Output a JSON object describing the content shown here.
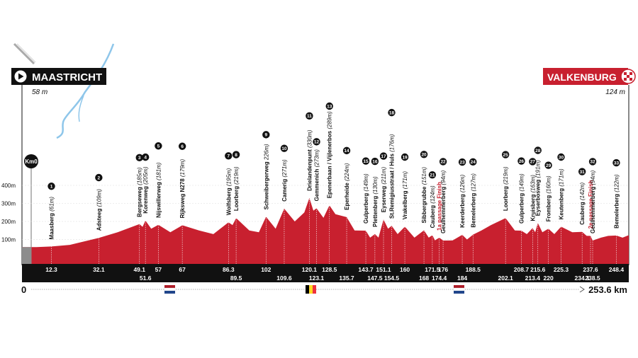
{
  "start": {
    "name": "MAASTRICHT",
    "elevation": "58 m",
    "km0": "Km0"
  },
  "finish": {
    "name": "VALKENBURG",
    "elevation": "124 m"
  },
  "distance": {
    "start": "0",
    "end": "253.6 km"
  },
  "colors": {
    "profile": "#c8202f",
    "start_tag": "#111111",
    "finish_tag": "#c8202f",
    "bar": "#111111",
    "river": "#8ec6ea"
  },
  "chart_data": {
    "type": "area",
    "ylabel": "",
    "y_ticks": [
      "100m",
      "200m",
      "300m",
      "400m"
    ],
    "ylim": [
      0,
      520
    ],
    "xlim": [
      0,
      253.6
    ],
    "climbs": [
      {
        "n": 1,
        "name": "Maasberg",
        "elev": "(61m)",
        "km": 12.3
      },
      {
        "n": 2,
        "name": "Adsteeg",
        "elev": "(109m)",
        "km": 32.1
      },
      {
        "n": 3,
        "name": "Bergseweg",
        "elev": "(185m)",
        "km": 49.1
      },
      {
        "n": 4,
        "name": "Korenweg",
        "elev": "(205m)",
        "km": 51.6
      },
      {
        "n": 5,
        "name": "Nijswillerweg",
        "elev": "(181m)",
        "km": 57
      },
      {
        "n": 6,
        "name": "Rijksweg N278",
        "elev": "(179m)",
        "km": 67
      },
      {
        "n": 7,
        "name": "Wolfsberg",
        "elev": "(195m)",
        "km": 86.3
      },
      {
        "n": 8,
        "name": "Loorberg",
        "elev": "(219m)",
        "km": 89.5
      },
      {
        "n": 9,
        "name": "Schweibergerweg",
        "elev": "226m)",
        "km": 102
      },
      {
        "n": 10,
        "name": "Camerig",
        "elev": "(271m)",
        "km": 109.6
      },
      {
        "n": 11,
        "name": "Drielandenpunt",
        "elev": "(330m)",
        "km": 120.1
      },
      {
        "n": 12,
        "name": "Gemmenich",
        "elev": "(273m)",
        "km": 123.1
      },
      {
        "n": 13,
        "name": "Epenerbaan / Vijlenerbos",
        "elev": "(289m)",
        "km": 128.5
      },
      {
        "n": 14,
        "name": "Eperheide",
        "elev": "(224m)",
        "km": 135.7
      },
      {
        "n": 15,
        "name": "Gulperberg",
        "elev": "(149m)",
        "km": 143.7
      },
      {
        "n": 16,
        "name": "Plettenberg",
        "elev": "(130m)",
        "km": 147.5
      },
      {
        "n": 17,
        "name": "Eyserweg",
        "elev": "(211m)",
        "km": 151.1
      },
      {
        "n": 18,
        "name": "St.Remigiusstraat / Huls",
        "elev": "(176m)",
        "km": 154.5
      },
      {
        "n": 19,
        "name": "Vrakelberg",
        "elev": "(171m)",
        "km": 160
      },
      {
        "n": 20,
        "name": "Sibbergrubbe",
        "elev": "(151m)",
        "km": 168
      },
      {
        "n": 21,
        "name": "Cauberg",
        "elev": "(124m)",
        "km": 171.5
      },
      {
        "n": "",
        "name": "1a passage Finish",
        "elev": "",
        "km": 174.4,
        "red": true
      },
      {
        "n": 22,
        "name": "Geulhemmerberg",
        "elev": "(94m)",
        "km": 176
      },
      {
        "n": 23,
        "name": "Keerderberg",
        "elev": "(126m)",
        "km": 184
      },
      {
        "n": 24,
        "name": "Bemelerberg",
        "elev": "(127m)",
        "km": 188.5
      },
      {
        "n": 25,
        "name": "Loorberg",
        "elev": "(219m)",
        "km": 202.1
      },
      {
        "n": 26,
        "name": "Gulperberg",
        "elev": "(149m)",
        "km": 208.7
      },
      {
        "n": 27,
        "name": "Kruisberg",
        "elev": "(163m)",
        "km": 213.4
      },
      {
        "n": 28,
        "name": "Eyserbosweg",
        "elev": "(191m)",
        "km": 215.6
      },
      {
        "n": 29,
        "name": "Fromberg",
        "elev": "(160m)",
        "km": 220
      },
      {
        "n": 30,
        "name": "Keutenberg",
        "elev": "(171m)",
        "km": 225.3
      },
      {
        "n": 31,
        "name": "Cauberg",
        "elev": "(142m)",
        "km": 234.1
      },
      {
        "n": "",
        "name": "2e passage Finish",
        "elev": "",
        "km": 237.6,
        "red": true
      },
      {
        "n": 32,
        "name": "Geulhemmerberg",
        "elev": "(94m)",
        "km": 238.5
      },
      {
        "n": 33,
        "name": "Bemelerberg",
        "elev": "(122m)",
        "km": 248.4
      }
    ],
    "km_labels_top": [
      "12.3",
      "32.1",
      "49.1",
      "57",
      "67",
      "86.3",
      "102",
      "120.1",
      "128.5",
      "143.7",
      "151.1",
      "160",
      "171.5",
      "176",
      "188.5",
      "208.7",
      "215.6",
      "225.3",
      "237.6",
      "248.4"
    ],
    "km_labels_bottom": [
      "51.6",
      "89.5",
      "109.6",
      "123.1",
      "135.7",
      "147.5",
      "154.5",
      "168",
      "174.4",
      "184",
      "202.1",
      "213.4",
      "220",
      "234.1",
      "238.5"
    ],
    "profile": [
      [
        0,
        58
      ],
      [
        6,
        58
      ],
      [
        12.3,
        61
      ],
      [
        20,
        70
      ],
      [
        32.1,
        109
      ],
      [
        40,
        140
      ],
      [
        46,
        170
      ],
      [
        49.1,
        185
      ],
      [
        50.4,
        170
      ],
      [
        51.6,
        205
      ],
      [
        54,
        160
      ],
      [
        57,
        181
      ],
      [
        62,
        140
      ],
      [
        67,
        179
      ],
      [
        74,
        150
      ],
      [
        80,
        130
      ],
      [
        86.3,
        195
      ],
      [
        88,
        180
      ],
      [
        89.5,
        219
      ],
      [
        95,
        150
      ],
      [
        99,
        140
      ],
      [
        102,
        226
      ],
      [
        106,
        160
      ],
      [
        109.6,
        271
      ],
      [
        114,
        200
      ],
      [
        118,
        250
      ],
      [
        120.1,
        330
      ],
      [
        121.8,
        260
      ],
      [
        123.1,
        273
      ],
      [
        126,
        220
      ],
      [
        128.5,
        289
      ],
      [
        131,
        240
      ],
      [
        135.7,
        224
      ],
      [
        139,
        150
      ],
      [
        143.7,
        149
      ],
      [
        145.5,
        110
      ],
      [
        147.5,
        130
      ],
      [
        149,
        110
      ],
      [
        151.1,
        211
      ],
      [
        153,
        160
      ],
      [
        154.5,
        176
      ],
      [
        157,
        130
      ],
      [
        160,
        171
      ],
      [
        164,
        110
      ],
      [
        168,
        151
      ],
      [
        170,
        110
      ],
      [
        171.5,
        124
      ],
      [
        172.6,
        95
      ],
      [
        174.4,
        110
      ],
      [
        176,
        94
      ],
      [
        180,
        95
      ],
      [
        184,
        126
      ],
      [
        186,
        100
      ],
      [
        188.5,
        127
      ],
      [
        192,
        150
      ],
      [
        196,
        180
      ],
      [
        202.1,
        219
      ],
      [
        206,
        150
      ],
      [
        208.7,
        149
      ],
      [
        211,
        130
      ],
      [
        213.4,
        163
      ],
      [
        214.5,
        140
      ],
      [
        215.6,
        191
      ],
      [
        217.5,
        140
      ],
      [
        220,
        160
      ],
      [
        222.5,
        130
      ],
      [
        225.3,
        171
      ],
      [
        230,
        140
      ],
      [
        234.1,
        142
      ],
      [
        236,
        120
      ],
      [
        237.6,
        120
      ],
      [
        238.5,
        94
      ],
      [
        242,
        110
      ],
      [
        245,
        120
      ],
      [
        248.4,
        122
      ],
      [
        251,
        110
      ],
      [
        253.6,
        124
      ]
    ]
  }
}
